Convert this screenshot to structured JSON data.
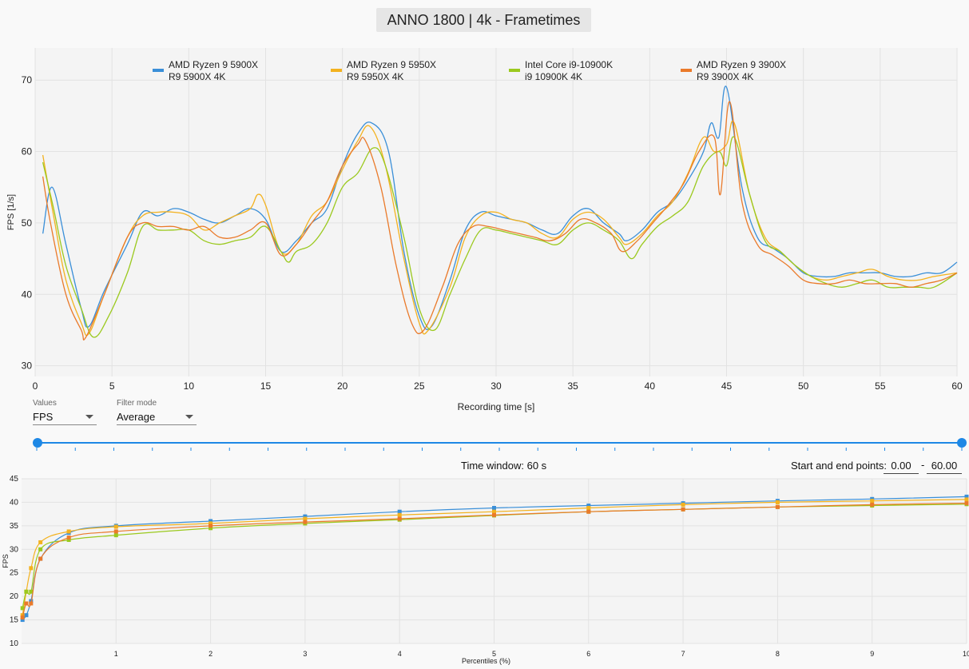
{
  "title": "ANNO 1800 | 4k - Frametimes",
  "top_chart": {
    "ylabel": "FPS [1/s]",
    "xlabel": "Recording time [s]",
    "xlim": [
      0,
      60
    ],
    "ylim": [
      28.5,
      74.5
    ],
    "xticks": [
      0,
      5,
      10,
      15,
      20,
      25,
      30,
      35,
      40,
      45,
      50,
      55,
      60
    ],
    "yticks": [
      30,
      40,
      50,
      60,
      70
    ],
    "legend": [
      {
        "line1": "AMD Ryzen 9 5900X",
        "line2": "R9 5900X 4K",
        "color": "#3a8fd8"
      },
      {
        "line1": "AMD Ryzen 9 5950X",
        "line2": "R9 5950X 4K",
        "color": "#f3b21f"
      },
      {
        "line1": "Intel Core i9-10900K",
        "line2": "i9 10900K 4K",
        "color": "#9bc91e"
      },
      {
        "line1": "AMD Ryzen 9 3900X",
        "line2": "R9 3900X 4K",
        "color": "#ea7a2a"
      }
    ]
  },
  "controls": {
    "values_label": "Values",
    "values_selected": "FPS",
    "filter_label": "Filter mode",
    "filter_selected": "Average",
    "time_window": "Time window:  60 s",
    "start_end_label": "Start and end points:",
    "start_value": "0.00",
    "dash": "-",
    "end_value": "60.00"
  },
  "bottom_chart": {
    "ylabel": "FPS",
    "xlabel": "Percentiles (%)",
    "yticks": [
      10,
      15,
      20,
      25,
      30,
      35,
      40,
      45
    ],
    "xticks": [
      1,
      2,
      3,
      4,
      5,
      6,
      7,
      8,
      9,
      10
    ]
  },
  "chart_data": [
    {
      "type": "line",
      "xlabel": "Recording time [s]",
      "ylabel": "FPS [1/s]",
      "xlim": [
        0,
        60
      ],
      "ylim": [
        28.5,
        74.5
      ],
      "grid": true,
      "legend_position": "top",
      "series": [
        {
          "name": "AMD Ryzen 9 5900X / R9 5900X 4K",
          "color": "#3a8fd8",
          "x": [
            0.5,
            1.1,
            2,
            3,
            3.5,
            4.5,
            6,
            7,
            8,
            9,
            10,
            11,
            12,
            13,
            14,
            15,
            16,
            17,
            18,
            19,
            20,
            21,
            21.9,
            23,
            24,
            25,
            25.8,
            27,
            28,
            29,
            30,
            31,
            32,
            33,
            34,
            35,
            36,
            37,
            38,
            38.5,
            39.5,
            40.5,
            41.5,
            42.5,
            43.5,
            44,
            44.5,
            45,
            46,
            47,
            48,
            49,
            50,
            51,
            52,
            53,
            54,
            55,
            56,
            57,
            58,
            59,
            60
          ],
          "y": [
            48.5,
            55,
            47,
            38,
            35.5,
            40.5,
            47,
            51.5,
            51,
            52,
            51.5,
            50.5,
            50,
            51,
            52,
            50.5,
            46,
            47.5,
            50,
            52,
            58,
            62.5,
            64,
            60,
            46,
            37,
            35.5,
            42,
            49,
            51.5,
            51,
            50.5,
            50,
            49,
            48.5,
            51,
            52,
            50,
            48.5,
            47.5,
            49,
            51.5,
            53,
            56,
            60,
            64,
            62,
            69,
            55,
            48,
            46.5,
            45,
            43,
            42.5,
            42.5,
            43,
            43,
            43,
            42.5,
            42.5,
            43,
            43,
            44.5
          ]
        },
        {
          "name": "AMD Ryzen 9 5950X / R9 5950X 4K",
          "color": "#f3b21f",
          "x": [
            0.5,
            1.2,
            2,
            3,
            3.5,
            4.5,
            6,
            7,
            8,
            9,
            10,
            11,
            12,
            13,
            14,
            14.5,
            15,
            16,
            17,
            18,
            19,
            20,
            21,
            21.8,
            22.8,
            24,
            25,
            25.6,
            27,
            28,
            29,
            30,
            31,
            32,
            33,
            34,
            35,
            36,
            37,
            38,
            38.5,
            39.5,
            40.5,
            41.5,
            42.5,
            43.5,
            44.2,
            45,
            45.5,
            46.5,
            47.5,
            48.5,
            49.5,
            50.5,
            51.5,
            52.5,
            53.5,
            54.5,
            55.5,
            56.5,
            57.5,
            58.5,
            60
          ],
          "y": [
            59.5,
            51,
            42,
            36,
            34.5,
            40,
            48,
            51,
            51.5,
            51.5,
            51,
            49,
            50,
            51,
            52,
            54,
            52.5,
            46,
            47,
            51,
            53,
            57.5,
            61.5,
            63.5,
            58,
            45,
            36,
            35,
            41,
            48,
            51,
            51.5,
            50.5,
            50,
            48.5,
            48,
            50.5,
            51.5,
            50.5,
            48,
            47,
            48.5,
            51,
            53,
            57,
            62,
            60,
            61,
            64,
            54,
            48,
            46,
            44,
            42.5,
            42,
            42.5,
            43,
            43.5,
            42.5,
            42,
            42,
            42.5,
            43
          ]
        },
        {
          "name": "Intel Core i9-10900K / i9 10900K 4K",
          "color": "#9bc91e",
          "x": [
            0.5,
            1.2,
            2,
            3,
            3.8,
            4.8,
            6,
            7,
            8,
            9,
            10,
            11,
            12,
            13,
            14,
            15,
            16,
            16.5,
            17,
            18,
            19,
            20,
            21,
            22,
            22.8,
            24,
            25,
            26,
            27,
            28,
            29,
            30,
            31,
            32,
            33,
            34,
            35,
            36,
            37,
            38,
            38.8,
            39.5,
            40.5,
            41.5,
            42.5,
            43.5,
            44.5,
            45,
            45.5,
            46.5,
            47.5,
            48.5,
            49.5,
            50.5,
            51.5,
            52.5,
            53.5,
            54.5,
            55.5,
            56.5,
            57.5,
            58.5,
            60
          ],
          "y": [
            58.5,
            52,
            44,
            38,
            34,
            37,
            43,
            49.5,
            49,
            49,
            49,
            47.5,
            47,
            47.5,
            48,
            49.5,
            46,
            44.5,
            46,
            47,
            50,
            55,
            57,
            60.5,
            58,
            48,
            38,
            35,
            40,
            45,
            49,
            49,
            48.5,
            48,
            47.5,
            47,
            49,
            50,
            49,
            47.5,
            45,
            47,
            49.5,
            51,
            53,
            58,
            60,
            58,
            62,
            54,
            47.5,
            46,
            44,
            42.5,
            41.5,
            41,
            41.5,
            42,
            41,
            41,
            41,
            41,
            43
          ]
        },
        {
          "name": "AMD Ryzen 9 3900X / R9 3900X 4K",
          "color": "#ea7a2a",
          "x": [
            0.5,
            1,
            2,
            3,
            3.3,
            4.5,
            6,
            7,
            8,
            9,
            10,
            11,
            12,
            13,
            14,
            15,
            16,
            17,
            18,
            19,
            20,
            21,
            21.5,
            22.5,
            23.5,
            24.5,
            25.3,
            26.5,
            27.5,
            28.5,
            29.5,
            30.5,
            31.5,
            32.5,
            33.5,
            34.5,
            35.5,
            36.5,
            37.5,
            38.2,
            39.2,
            40.2,
            41.2,
            42.2,
            43.2,
            44.2,
            44.6,
            45.2,
            46,
            47,
            48,
            49,
            50,
            51,
            52,
            53,
            54,
            55,
            56,
            57,
            58,
            59,
            60
          ],
          "y": [
            56.5,
            50,
            40,
            35,
            34,
            40,
            48,
            50,
            49.5,
            49.5,
            49,
            49.5,
            48,
            48,
            49,
            50,
            45.5,
            47,
            50,
            53,
            58,
            61,
            61.5,
            55,
            44,
            36,
            35,
            41,
            47,
            49.5,
            49.5,
            49,
            48.5,
            48,
            47.5,
            48.5,
            50.5,
            50,
            48.5,
            46,
            47.5,
            50,
            52.5,
            55.5,
            60,
            62,
            54,
            67,
            53,
            47,
            45.5,
            44,
            42,
            41.5,
            41.5,
            42,
            41.5,
            41.5,
            41.5,
            41,
            41.5,
            42,
            43
          ]
        }
      ]
    },
    {
      "type": "line",
      "xlabel": "Percentiles (%)",
      "ylabel": "FPS",
      "xlim": [
        0,
        10
      ],
      "ylim": [
        10,
        45
      ],
      "grid": true,
      "series": [
        {
          "name": "AMD Ryzen 9 5900X",
          "color": "#3a8fd8",
          "x": [
            0.01,
            0.05,
            0.1,
            0.2,
            0.5,
            1,
            2,
            3,
            4,
            5,
            6,
            7,
            8,
            9,
            10
          ],
          "y": [
            15,
            16,
            19,
            28,
            33.5,
            35,
            36,
            37,
            38,
            38.8,
            39.3,
            39.8,
            40.3,
            40.7,
            41.2
          ]
        },
        {
          "name": "AMD Ryzen 9 5950X",
          "color": "#f3b21f",
          "x": [
            0.01,
            0.05,
            0.1,
            0.2,
            0.5,
            1,
            2,
            3,
            4,
            5,
            6,
            7,
            8,
            9,
            10
          ],
          "y": [
            16,
            21,
            26,
            31.5,
            33.8,
            34.8,
            35.5,
            36.5,
            37.3,
            38,
            38.8,
            39.5,
            40,
            40.3,
            40.6
          ]
        },
        {
          "name": "Intel Core i9-10900K",
          "color": "#9bc91e",
          "x": [
            0.01,
            0.05,
            0.1,
            0.2,
            0.5,
            1,
            2,
            3,
            4,
            5,
            6,
            7,
            8,
            9,
            10
          ],
          "y": [
            17.5,
            21,
            21,
            30,
            32,
            33,
            34.5,
            35.5,
            36.3,
            37.2,
            38,
            38.5,
            39,
            39.3,
            39.6
          ]
        },
        {
          "name": "AMD Ryzen 9 3900X",
          "color": "#ea7a2a",
          "x": [
            0.01,
            0.05,
            0.1,
            0.2,
            0.5,
            1,
            2,
            3,
            4,
            5,
            6,
            7,
            8,
            9,
            10
          ],
          "y": [
            15.5,
            18.5,
            18.5,
            28,
            32.5,
            33.8,
            35,
            35.8,
            36.5,
            37.3,
            38,
            38.5,
            39,
            39.5,
            39.8
          ]
        }
      ]
    }
  ]
}
